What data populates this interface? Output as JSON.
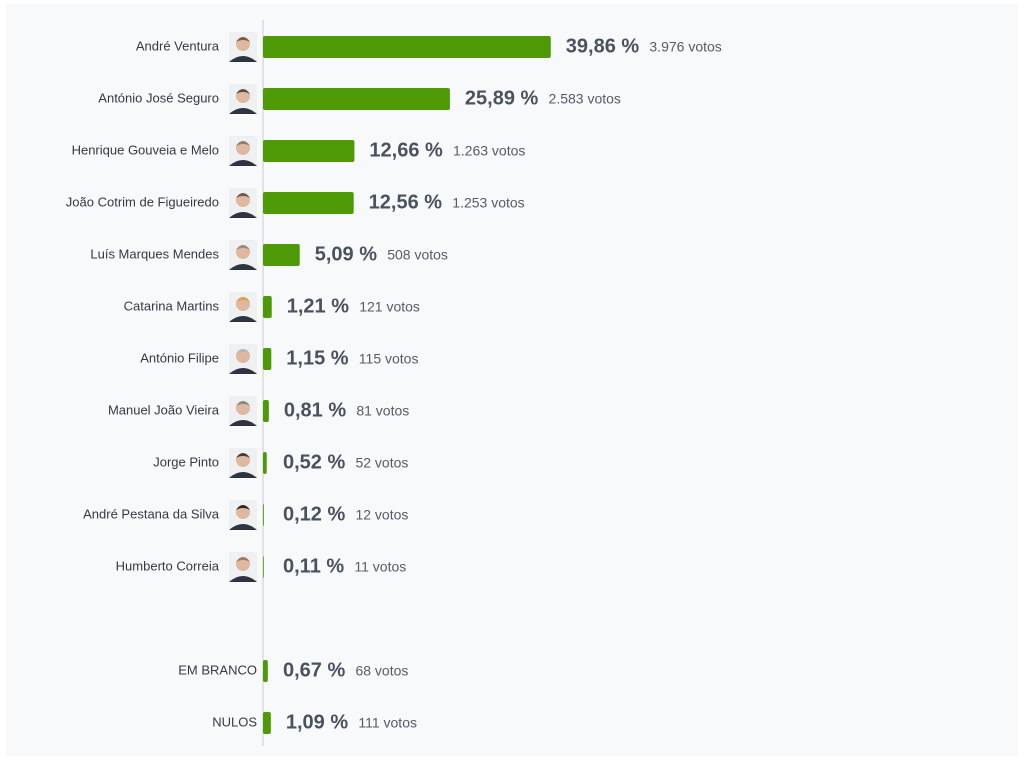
{
  "chart_data": {
    "type": "hbar",
    "categories": [
      "André Ventura",
      "António José Seguro",
      "Henrique Gouveia e Melo",
      "João Cotrim de Figueiredo",
      "Luís Marques Mendes",
      "Catarina Martins",
      "António Filipe",
      "Manuel João Vieira",
      "Jorge Pinto",
      "André Pestana da Silva",
      "Humberto Correia",
      null,
      "EM BRANCO",
      "NULOS"
    ],
    "values": [
      39.86,
      25.89,
      12.66,
      12.56,
      5.09,
      1.21,
      1.15,
      0.81,
      0.52,
      0.12,
      0.11,
      null,
      0.67,
      1.09
    ],
    "value_labels": [
      "39,86 %",
      "25,89 %",
      "12,66 %",
      "12,56 %",
      "5,09 %",
      "1,21 %",
      "1,15 %",
      "0,81 %",
      "0,52 %",
      "0,12 %",
      "0,11 %",
      null,
      "0,67 %",
      "1,09 %"
    ],
    "vote_labels": [
      "3.976 votos",
      "2.583 votos",
      "1.263 votos",
      "1.253 votos",
      "508 votos",
      "121 votos",
      "115 votos",
      "81 votos",
      "52 votos",
      "12 votos",
      "11 votos",
      null,
      "68 votos",
      "111 votos"
    ],
    "color": "#4e9a06",
    "xlim": [
      0,
      100
    ]
  }
}
